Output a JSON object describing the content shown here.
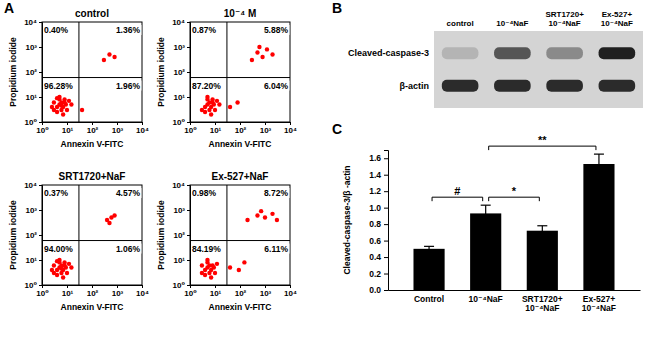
{
  "chart_data": [
    {
      "panel": "A",
      "type": "scatter",
      "title": "control",
      "x_label": "Annexin V-FITC",
      "y_label": "Propidium iodide",
      "log": true,
      "color": "#ff0000",
      "marker": "dot",
      "xlim": [
        1,
        10000
      ],
      "ylim": [
        1,
        10000
      ],
      "xticks": [
        {
          "value": 1,
          "label": "10⁰"
        },
        {
          "value": 10,
          "label": "10¹"
        },
        {
          "value": 100,
          "label": "10²"
        },
        {
          "value": 1000,
          "label": "10³"
        },
        {
          "value": 10000,
          "label": "10⁴"
        }
      ],
      "yticks": [
        {
          "value": 1,
          "label": "10⁰"
        },
        {
          "value": 10,
          "label": "10¹"
        },
        {
          "value": 100,
          "label": "10²"
        },
        {
          "value": 1000,
          "label": "10³"
        },
        {
          "value": 10000,
          "label": "10⁴"
        }
      ],
      "gates": {
        "x": 30,
        "y": 60
      },
      "quadrants": {
        "upper_left": "0.40%",
        "upper_right": "1.36%",
        "lower_left": "96.28%",
        "lower_right": "1.96%"
      },
      "x": [
        3,
        4,
        5,
        6,
        8,
        5,
        4,
        7,
        9,
        3,
        6,
        10,
        12,
        5,
        2.5,
        7,
        4,
        8,
        6,
        15,
        40,
        300,
        500,
        800
      ],
      "values": [
        3,
        4,
        5,
        3,
        6,
        8,
        2.5,
        4,
        5,
        6,
        6,
        3,
        7,
        10,
        4,
        2,
        9,
        8,
        4.5,
        5,
        3,
        300,
        500,
        400
      ]
    },
    {
      "type": "scatter",
      "title": "10⁻⁴ M",
      "x_label": "Annexin V-FITC",
      "y_label": "Propidium iodide",
      "log": true,
      "color": "#ff0000",
      "marker": "dot",
      "xlim": [
        1,
        10000
      ],
      "ylim": [
        1,
        10000
      ],
      "xticks": [
        {
          "value": 1,
          "label": "10⁰"
        },
        {
          "value": 10,
          "label": "10¹"
        },
        {
          "value": 100,
          "label": "10²"
        },
        {
          "value": 1000,
          "label": "10³"
        },
        {
          "value": 10000,
          "label": "10⁴"
        }
      ],
      "yticks": [
        {
          "value": 1,
          "label": "10⁰"
        },
        {
          "value": 10,
          "label": "10¹"
        },
        {
          "value": 100,
          "label": "10²"
        },
        {
          "value": 1000,
          "label": "10³"
        },
        {
          "value": 10000,
          "label": "10⁴"
        }
      ],
      "gates": {
        "x": 30,
        "y": 60
      },
      "quadrants": {
        "upper_left": "0.87%",
        "upper_right": "5.88%",
        "lower_left": "87.20%",
        "lower_right": "6.04%"
      },
      "x": [
        3,
        4,
        5,
        6,
        8,
        5,
        4,
        7,
        9,
        6,
        10,
        12,
        5,
        7,
        8,
        15,
        40,
        80,
        300,
        500,
        800,
        1200,
        600,
        2000
      ],
      "values": [
        3,
        4,
        5,
        3,
        6,
        8,
        2.5,
        4,
        5,
        6,
        3,
        7,
        10,
        2,
        8,
        5,
        4,
        6,
        300,
        600,
        400,
        800,
        1000,
        500
      ]
    },
    {
      "type": "scatter",
      "title": "SRT1720+NaF",
      "x_label": "Annexin V-FITC",
      "y_label": "Propidium iodide",
      "log": true,
      "color": "#ff0000",
      "marker": "dot",
      "xlim": [
        1,
        10000
      ],
      "ylim": [
        1,
        10000
      ],
      "xticks": [
        {
          "value": 1,
          "label": "10⁰"
        },
        {
          "value": 10,
          "label": "10¹"
        },
        {
          "value": 100,
          "label": "10²"
        },
        {
          "value": 1000,
          "label": "10³"
        },
        {
          "value": 10000,
          "label": "10⁴"
        }
      ],
      "yticks": [
        {
          "value": 1,
          "label": "10⁰"
        },
        {
          "value": 10,
          "label": "10¹"
        },
        {
          "value": 100,
          "label": "10²"
        },
        {
          "value": 1000,
          "label": "10³"
        },
        {
          "value": 10000,
          "label": "10⁴"
        }
      ],
      "gates": {
        "x": 30,
        "y": 60
      },
      "quadrants": {
        "upper_left": "0.37%",
        "upper_right": "4.57%",
        "lower_left": "94.00%",
        "lower_right": "1.06%"
      },
      "x": [
        3,
        4,
        5,
        6,
        8,
        5,
        4,
        7,
        9,
        3,
        6,
        10,
        12,
        5,
        2.5,
        7,
        4,
        8,
        6,
        15,
        400,
        600,
        800,
        500
      ],
      "values": [
        3,
        4,
        5,
        3,
        6,
        8,
        2.5,
        4,
        5,
        6,
        6,
        3,
        7,
        10,
        4,
        2,
        9,
        8,
        4.5,
        5,
        400,
        500,
        600,
        300
      ]
    },
    {
      "type": "scatter",
      "title": "Ex-527+NaF",
      "x_label": "Annexin V-FITC",
      "y_label": "Propidium iodide",
      "log": true,
      "color": "#ff0000",
      "marker": "dot",
      "xlim": [
        1,
        10000
      ],
      "ylim": [
        1,
        10000
      ],
      "xticks": [
        {
          "value": 1,
          "label": "10⁰"
        },
        {
          "value": 10,
          "label": "10¹"
        },
        {
          "value": 100,
          "label": "10²"
        },
        {
          "value": 1000,
          "label": "10³"
        },
        {
          "value": 10000,
          "label": "10⁴"
        }
      ],
      "yticks": [
        {
          "value": 1,
          "label": "10⁰"
        },
        {
          "value": 10,
          "label": "10¹"
        },
        {
          "value": 100,
          "label": "10²"
        },
        {
          "value": 1000,
          "label": "10³"
        },
        {
          "value": 10000,
          "label": "10⁴"
        }
      ],
      "gates": {
        "x": 30,
        "y": 60
      },
      "quadrants": {
        "upper_left": "0.98%",
        "upper_right": "8.72%",
        "lower_left": "84.19%",
        "lower_right": "6.11%"
      },
      "x": [
        3,
        4,
        5,
        6,
        8,
        5,
        4,
        7,
        9,
        3,
        6,
        10,
        12,
        5,
        7,
        40,
        90,
        150,
        200,
        500,
        1000,
        2000,
        700,
        3000
      ],
      "values": [
        3,
        4,
        5,
        3,
        6,
        8,
        2.5,
        4,
        5,
        6,
        6,
        3,
        7,
        10,
        2,
        5,
        4,
        8,
        400,
        600,
        500,
        700,
        900,
        400
      ]
    },
    {
      "panel": "B",
      "type": "blot",
      "lanes": [
        "control",
        "10⁻⁴NaF",
        "SRT1720+10⁻⁴NaF",
        "Ex-527+10⁻⁴NaF"
      ],
      "rows": [
        {
          "label": "Cleaved-caspase-3",
          "intensity": [
            0.15,
            0.6,
            0.35,
            0.85
          ]
        },
        {
          "label": "β-actin",
          "intensity": [
            0.8,
            0.8,
            0.8,
            0.8
          ]
        }
      ]
    },
    {
      "panel": "C",
      "type": "bar",
      "categories": [
        "Control",
        "10⁻⁴NaF",
        "SRT1720+10⁻⁴NaF",
        "Ex-527+10⁻⁴NaF"
      ],
      "values": [
        0.5,
        0.93,
        0.72,
        1.53
      ],
      "errors": [
        0.03,
        0.1,
        0.06,
        0.12
      ],
      "color": "#000000",
      "ylim": [
        0,
        1.7
      ],
      "yticks": [
        {
          "value": 0,
          "label": "0.0"
        },
        0.2,
        0.4,
        0.6,
        0.8,
        {
          "value": 1,
          "label": "1.0"
        },
        1.2,
        1.4,
        1.6
      ],
      "y_label": "Cleaved-caspase-3/β -actin",
      "significance": [
        {
          "from": 0,
          "to": 1,
          "label": "#"
        },
        {
          "from": 1,
          "to": 2,
          "label": "*"
        },
        {
          "from": 1,
          "to": 3,
          "label": "**"
        }
      ]
    }
  ]
}
